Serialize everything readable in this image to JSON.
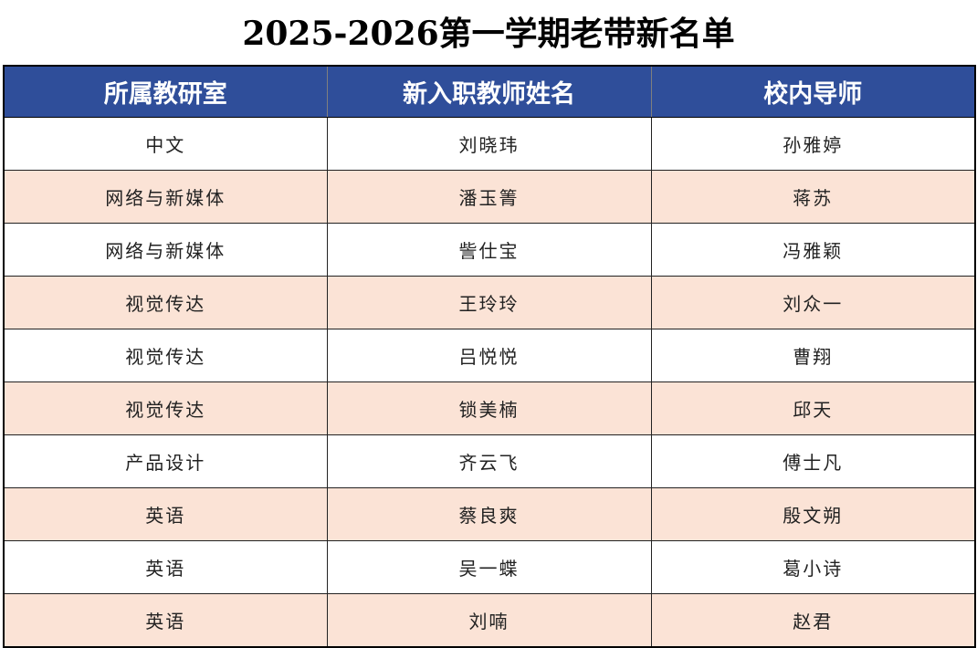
{
  "title": "2025-2026第一学期老带新名单",
  "table": {
    "headers": [
      "所属教研室",
      "新入职教师姓名",
      "校内导师"
    ],
    "rows": [
      [
        "中文",
        "刘晓玮",
        "孙雅婷"
      ],
      [
        "网络与新媒体",
        "潘玉箐",
        "蒋苏"
      ],
      [
        "网络与新媒体",
        "訾仕宝",
        "冯雅颖"
      ],
      [
        "视觉传达",
        "王玲玲",
        "刘众一"
      ],
      [
        "视觉传达",
        "吕悦悦",
        "曹翔"
      ],
      [
        "视觉传达",
        "锁美楠",
        "邱天"
      ],
      [
        "产品设计",
        "齐云飞",
        "傅士凡"
      ],
      [
        "英语",
        "蔡良爽",
        "殷文朔"
      ],
      [
        "英语",
        "吴一蝶",
        "葛小诗"
      ],
      [
        "英语",
        "刘喃",
        "赵君"
      ]
    ]
  },
  "colors": {
    "header_bg": "#2f4e9a",
    "header_text": "#ffffff",
    "stripe_bg": "#fbe3d6",
    "plain_bg": "#ffffff"
  }
}
